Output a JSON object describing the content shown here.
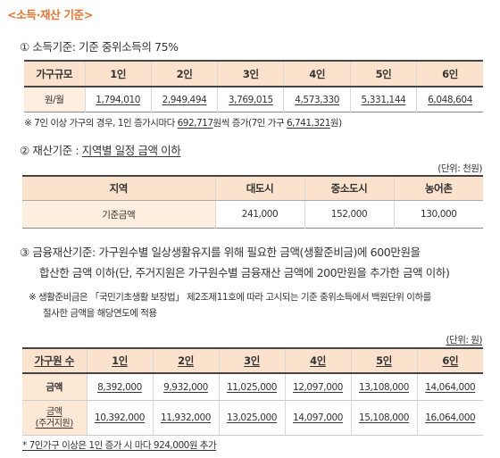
{
  "title": "<소득·재산 기준>",
  "income": {
    "heading": "① 소득기준: 기준 중위소득의 75%",
    "headers": [
      "가구규모",
      "1인",
      "2인",
      "3인",
      "4인",
      "5인",
      "6인"
    ],
    "row_label": "원/월",
    "values": [
      "1,794,010",
      "2,949,494",
      "3,769,015",
      "4,573,330",
      "5,331,144",
      "6,048,604"
    ],
    "note_prefix": "※ 7인 이상 가구의 경우, 1인 증가시마다 ",
    "note_amount": "692,717",
    "note_mid": "원씩 증가(7인 가구 ",
    "note_total": "6,741,321",
    "note_suffix": "원)"
  },
  "property": {
    "heading_prefix": "② 재산기준 : ",
    "heading_main": "지역별 일정 금액 이하",
    "unit": "(단위: 천원)",
    "headers": [
      "지역",
      "대도시",
      "중소도시",
      "농어촌"
    ],
    "row_label": "기준금액",
    "values": [
      "241,000",
      "152,000",
      "130,000"
    ]
  },
  "financial": {
    "heading_line1": "③ 금융재산기준: 가구원수별 일상생활유지를 위해 필요한 금액(생활준비금)에 600만원을",
    "heading_line2": "합산한 금액 이하(단, 주거지원은 가구원수별 금융재산 금액에 200만원을 추가한 금액 이하)",
    "note_line1": "※ 생활준비금은 「국민기초생활 보장법」 제2조제11호에 따라 고시되는 기준 중위소득에서 백원단위 이하를",
    "note_line2": "절사한 금액을 해당연도에 적용",
    "unit": "(단위: 원)",
    "headers": [
      "가구원 수",
      "1인",
      "2인",
      "3인",
      "4인",
      "5인",
      "6인"
    ],
    "row1_label": "금액",
    "row1_values": [
      "8,392,000",
      "9,932,000",
      "11,025,000",
      "12,097,000",
      "13,108,000",
      "14,064,000"
    ],
    "row2_label_line1": "금액",
    "row2_label_line2": "(주거지원)",
    "row2_values": [
      "10,392,000",
      "11,932,000",
      "13,025,000",
      "14,097,000",
      "15,108,000",
      "16,064,000"
    ],
    "footnote": "* 7인가구 이상은 1인 증가 시 마다 924,000원 추가"
  }
}
